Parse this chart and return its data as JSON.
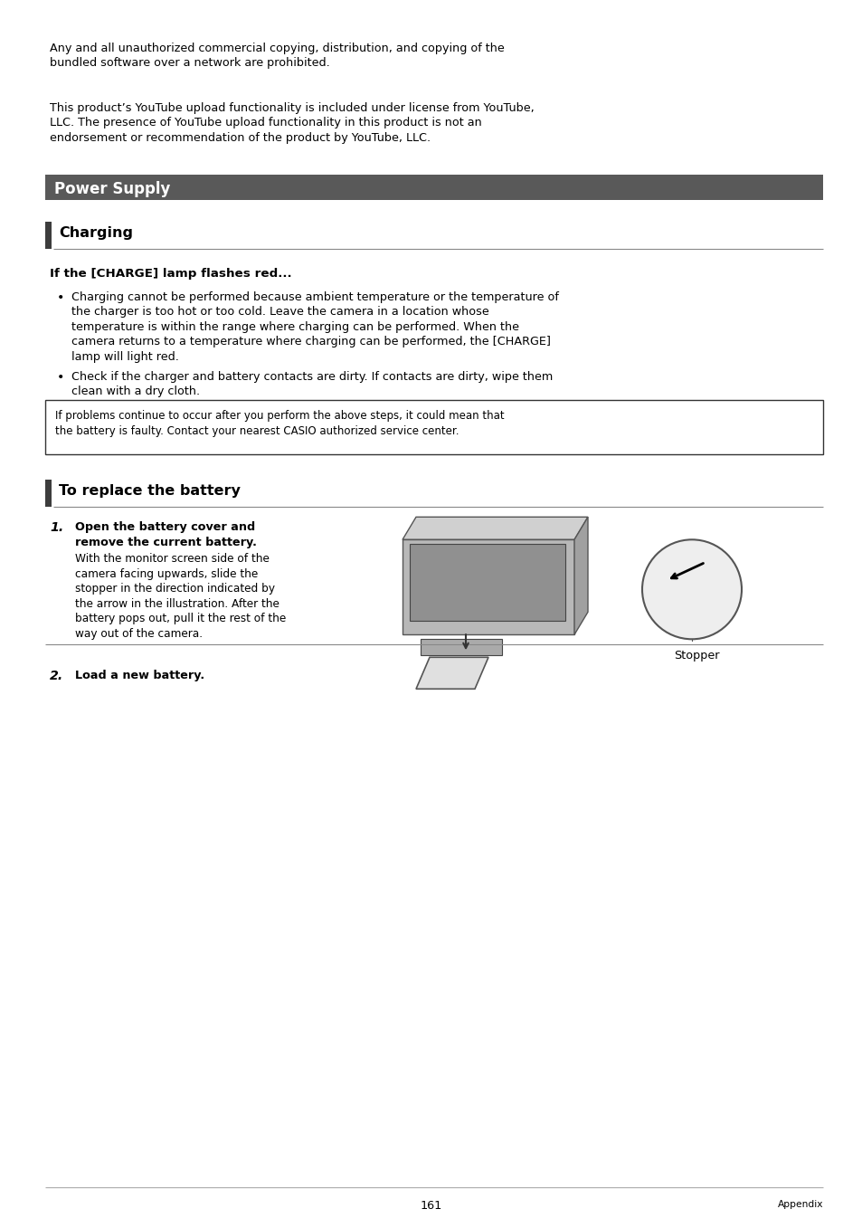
{
  "page_bg": "#ffffff",
  "text_color": "#000000",
  "header_bg": "#595959",
  "header_text_color": "#ffffff",
  "body_font_size": 9.2,
  "title_font_size": 11.5,
  "header_font_size": 12.0,
  "para1_l1": "Any and all unauthorized commercial copying, distribution, and copying of the",
  "para1_l2": "bundled software over a network are prohibited.",
  "para2_l1": "This product’s YouTube upload functionality is included under license from YouTube,",
  "para2_l2": "LLC. The presence of YouTube upload functionality in this product is not an",
  "para2_l3": "endorsement or recommendation of the product by YouTube, LLC.",
  "section_header": "Power Supply",
  "subsection_header": "Charging",
  "subheading": "If the [CHARGE] lamp flashes red...",
  "bullet1_lines": [
    "Charging cannot be performed because ambient temperature or the temperature of",
    "the charger is too hot or too cold. Leave the camera in a location whose",
    "temperature is within the range where charging can be performed. When the",
    "camera returns to a temperature where charging can be performed, the [CHARGE]",
    "lamp will light red."
  ],
  "bullet2_lines": [
    "Check if the charger and battery contacts are dirty. If contacts are dirty, wipe them",
    "clean with a dry cloth."
  ],
  "note_line1": "If problems continue to occur after you perform the above steps, it could mean that",
  "note_line2": "the battery is faulty. Contact your nearest CASIO authorized service center.",
  "subsection2_header": "To replace the battery",
  "step1_bold1": "Open the battery cover and",
  "step1_bold2": "remove the current battery.",
  "step1_text_lines": [
    "With the monitor screen side of the",
    "camera facing upwards, slide the",
    "stopper in the direction indicated by",
    "the arrow in the illustration. After the",
    "battery pops out, pull it the rest of the",
    "way out of the camera."
  ],
  "stopper_label": "Stopper",
  "step2_bold": "Load a new battery.",
  "footer_page": "161",
  "footer_right": "Appendix"
}
